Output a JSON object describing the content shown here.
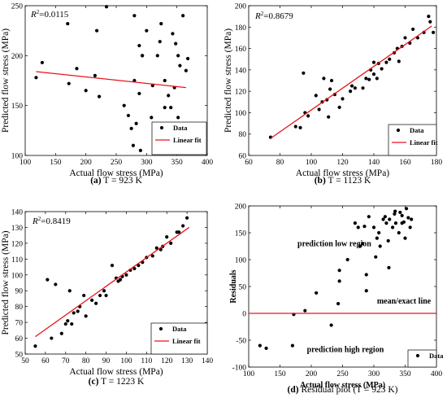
{
  "chart_data": [
    {
      "type": "scatter",
      "xlabel": "Actual flow stress (MPa)",
      "ylabel": "Predicted flow stress (MPa)",
      "xlim": [
        100,
        400
      ],
      "ylim": [
        100,
        250
      ],
      "x_ticks": [
        "100",
        "150",
        "200",
        "250",
        "300",
        "350",
        "400"
      ],
      "y_ticks": [
        "100",
        "150",
        "200",
        "250"
      ],
      "r2_label": "R",
      "r2_value": "=0.0115",
      "caption_letter": "(a)",
      "caption_text": "T = 923 K",
      "legend": [
        "Data",
        "Linear fit"
      ],
      "legend_placement": "bottom-right",
      "series": [
        {
          "name": "Data",
          "points": [
            [
              118,
              178
            ],
            [
              128,
              193
            ],
            [
              170,
              232
            ],
            [
              185,
              187
            ],
            [
              172,
              172
            ],
            [
              200,
              165
            ],
            [
              215,
              180
            ],
            [
              222,
              159
            ],
            [
              234,
              249
            ],
            [
              218,
              225
            ],
            [
              263,
              150
            ],
            [
              270,
              140
            ],
            [
              275,
              127
            ],
            [
              278,
              110
            ],
            [
              283,
              132
            ],
            [
              290,
              105
            ],
            [
              280,
              175
            ],
            [
              288,
              162
            ],
            [
              293,
              200
            ],
            [
              288,
              210
            ],
            [
              300,
              225
            ],
            [
              310,
              170
            ],
            [
              318,
              200
            ],
            [
              322,
              214
            ],
            [
              324,
              232
            ],
            [
              330,
              175
            ],
            [
              336,
              160
            ],
            [
              340,
              148
            ],
            [
              318,
              125
            ],
            [
              325,
              115
            ],
            [
              330,
              148
            ],
            [
              346,
              168
            ],
            [
              352,
              138
            ],
            [
              352,
              200
            ],
            [
              355,
              190
            ],
            [
              365,
              185
            ],
            [
              368,
              197
            ],
            [
              360,
              240
            ],
            [
              343,
              222
            ],
            [
              348,
              212
            ],
            [
              308,
              138
            ],
            [
              312,
              122
            ],
            [
              280,
              240
            ],
            [
              293,
              200
            ]
          ]
        },
        {
          "name": "Linear fit",
          "line": [
            [
              118,
              184
            ],
            [
              365,
              168
            ]
          ]
        }
      ]
    },
    {
      "type": "scatter",
      "xlabel": "Actual flow stress (MPa)",
      "ylabel": "Predicted flow stress (MPa)",
      "xlim": [
        60,
        180
      ],
      "ylim": [
        60,
        200
      ],
      "x_ticks": [
        "60",
        "80",
        "100",
        "120",
        "140",
        "160",
        "180"
      ],
      "y_ticks": [
        "60",
        "80",
        "100",
        "120",
        "140",
        "160",
        "180",
        "200"
      ],
      "r2_label": "R",
      "r2_value": "=0.8679",
      "caption_letter": "(b)",
      "caption_text": "T = 1123 K",
      "legend": [
        "Data",
        "Linear fit"
      ],
      "legend_placement": "bottom-right",
      "series": [
        {
          "name": "Data",
          "points": [
            [
              74,
              77
            ],
            [
              90,
              87
            ],
            [
              93,
              86
            ],
            [
              95,
              137
            ],
            [
              96,
              100
            ],
            [
              98,
              97
            ],
            [
              103,
              116
            ],
            [
              105,
              103
            ],
            [
              107,
              110
            ],
            [
              108,
              132
            ],
            [
              110,
              112
            ],
            [
              111,
              96
            ],
            [
              112,
              122
            ],
            [
              113,
              130
            ],
            [
              115,
              117
            ],
            [
              118,
              105
            ],
            [
              120,
              113
            ],
            [
              125,
              120
            ],
            [
              126,
              125
            ],
            [
              128,
              123
            ],
            [
              133,
              123
            ],
            [
              135,
              132
            ],
            [
              137,
              131
            ],
            [
              138,
              140
            ],
            [
              140,
              147
            ],
            [
              140,
              136
            ],
            [
              142,
              132
            ],
            [
              143,
              146
            ],
            [
              145,
              141
            ],
            [
              148,
              147
            ],
            [
              150,
              150
            ],
            [
              153,
              156
            ],
            [
              155,
              160
            ],
            [
              156,
              148
            ],
            [
              158,
              162
            ],
            [
              160,
              170
            ],
            [
              163,
              165
            ],
            [
              165,
              178
            ],
            [
              168,
              170
            ],
            [
              172,
              175
            ],
            [
              175,
              190
            ],
            [
              176,
              185
            ],
            [
              178,
              175
            ]
          ]
        },
        {
          "name": "Linear fit",
          "line": [
            [
              74,
              76
            ],
            [
              177,
              181
            ]
          ]
        }
      ]
    },
    {
      "type": "scatter",
      "xlabel": "Actual flow stress (MPa)",
      "ylabel": "Predicted flow stress (MPa)",
      "xlim": [
        50,
        140
      ],
      "ylim": [
        50,
        140
      ],
      "x_ticks": [
        "50",
        "60",
        "70",
        "80",
        "90",
        "100",
        "110",
        "120",
        "130",
        "140"
      ],
      "y_ticks": [
        "50",
        "60",
        "70",
        "80",
        "90",
        "100",
        "110",
        "120",
        "130",
        "140"
      ],
      "r2_label": "R",
      "r2_value": "=0.8419",
      "caption_letter": "(c)",
      "caption_text": "T = 1223 K",
      "legend": [
        "Data",
        "Linear fit"
      ],
      "legend_placement": "bottom-right",
      "series": [
        {
          "name": "Data",
          "points": [
            [
              55,
              55
            ],
            [
              61,
              97
            ],
            [
              63,
              60
            ],
            [
              65,
              94
            ],
            [
              68,
              63
            ],
            [
              70,
              69
            ],
            [
              71,
              71
            ],
            [
              72,
              90
            ],
            [
              73,
              69
            ],
            [
              74,
              76
            ],
            [
              76,
              77
            ],
            [
              77,
              80
            ],
            [
              79,
              87
            ],
            [
              80,
              74
            ],
            [
              83,
              84
            ],
            [
              85,
              82
            ],
            [
              87,
              87
            ],
            [
              89,
              90
            ],
            [
              90,
              87
            ],
            [
              93,
              106
            ],
            [
              95,
              98
            ],
            [
              96,
              96
            ],
            [
              97,
              97
            ],
            [
              98,
              99
            ],
            [
              100,
              100
            ],
            [
              102,
              103
            ],
            [
              104,
              104
            ],
            [
              106,
              106
            ],
            [
              108,
              108
            ],
            [
              110,
              111
            ],
            [
              113,
              112
            ],
            [
              115,
              117
            ],
            [
              117,
              116
            ],
            [
              118,
              118
            ],
            [
              120,
              124
            ],
            [
              122,
              120
            ],
            [
              125,
              127
            ],
            [
              126,
              127
            ],
            [
              128,
              131
            ],
            [
              130,
              136
            ]
          ]
        },
        {
          "name": "Linear fit",
          "line": [
            [
              55,
              61
            ],
            [
              131,
              130
            ]
          ]
        }
      ]
    },
    {
      "type": "scatter",
      "xlabel": "Actual flow stress (MPa)",
      "ylabel": "Residuals",
      "xlim": [
        100,
        400
      ],
      "ylim": [
        -100,
        200
      ],
      "x_ticks": [
        "100",
        "150",
        "200",
        "250",
        "300",
        "350",
        "400"
      ],
      "y_ticks": [
        "-100",
        "-50",
        "0",
        "50",
        "100",
        "150",
        "200"
      ],
      "caption_letter": "(d)",
      "caption_text": "Residual plot (T = 923 K)",
      "legend": [
        "Data"
      ],
      "legend_placement": "bottom-right",
      "annotations": [
        "prediction low region",
        "mean/exact line",
        "prediction high region"
      ],
      "series": [
        {
          "name": "Data",
          "points": [
            [
              118,
              -60
            ],
            [
              128,
              -65
            ],
            [
              170,
              -60
            ],
            [
              172,
              -2
            ],
            [
              190,
              5
            ],
            [
              208,
              38
            ],
            [
              232,
              -22
            ],
            [
              243,
              18
            ],
            [
              245,
              60
            ],
            [
              245,
              80
            ],
            [
              258,
              100
            ],
            [
              270,
              168
            ],
            [
              275,
              160
            ],
            [
              278,
              125
            ],
            [
              282,
              130
            ],
            [
              285,
              162
            ],
            [
              288,
              42
            ],
            [
              288,
              72
            ],
            [
              292,
              180
            ],
            [
              300,
              160
            ],
            [
              303,
              105
            ],
            [
              305,
              140
            ],
            [
              308,
              150
            ],
            [
              310,
              125
            ],
            [
              318,
              180
            ],
            [
              320,
              168
            ],
            [
              323,
              135
            ],
            [
              324,
              85
            ],
            [
              325,
              175
            ],
            [
              330,
              160
            ],
            [
              333,
              185
            ],
            [
              334,
              190
            ],
            [
              335,
              168
            ],
            [
              340,
              150
            ],
            [
              342,
              188
            ],
            [
              345,
              182
            ],
            [
              348,
              170
            ],
            [
              350,
              140
            ],
            [
              352,
              195
            ],
            [
              355,
              178
            ],
            [
              358,
              160
            ],
            [
              360,
              175
            ],
            [
              345,
              168
            ],
            [
              315,
              175
            ]
          ]
        },
        {
          "name": "mean/exact line",
          "line": [
            [
              100,
              0
            ],
            [
              400,
              0
            ]
          ]
        }
      ]
    }
  ],
  "colors": {
    "fit_line": "#e8141c",
    "zero_line": "#e8141c",
    "points": "#000000"
  }
}
